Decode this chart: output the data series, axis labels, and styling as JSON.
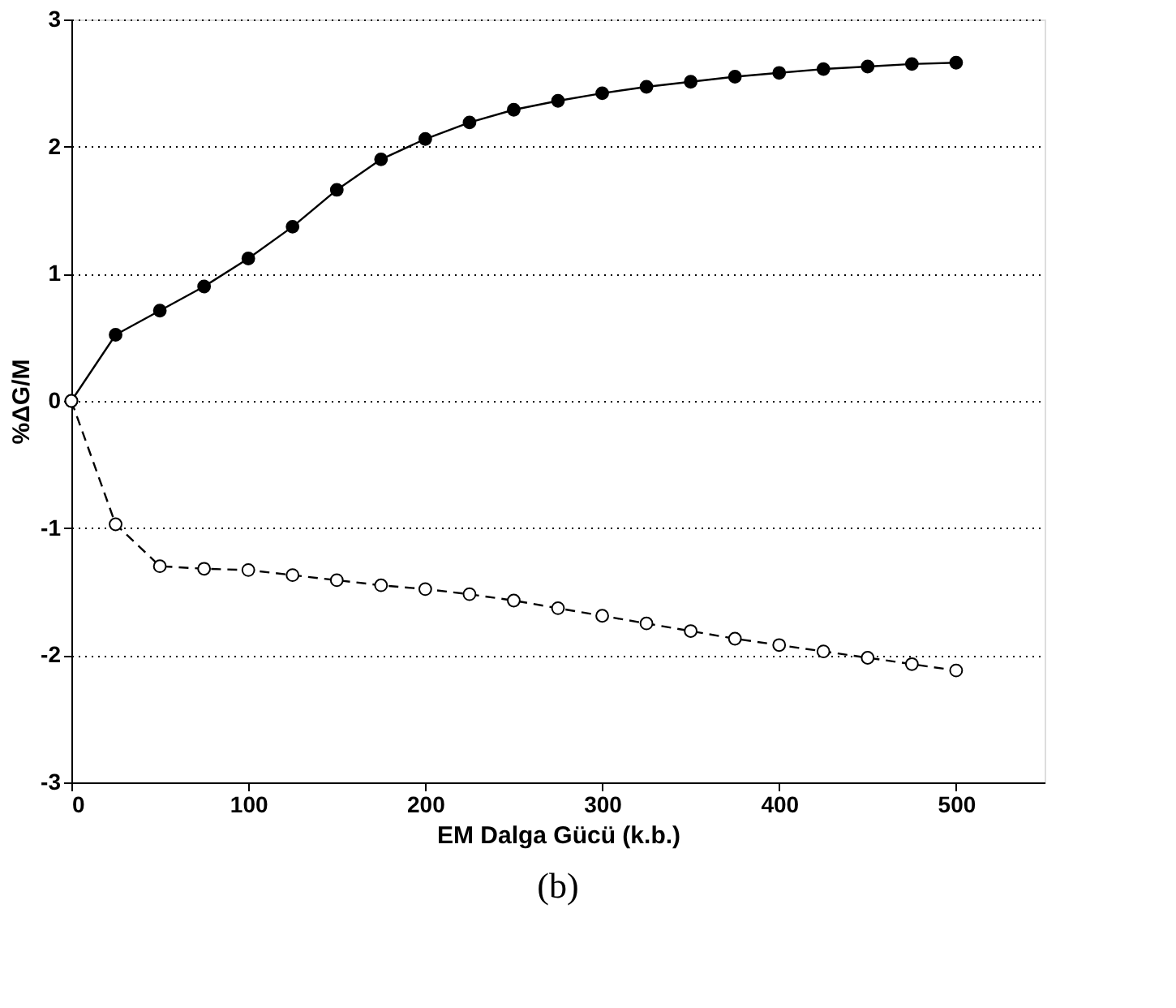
{
  "chart_data": {
    "type": "line",
    "xlabel": "EM Dalga Gücü (k.b.)",
    "ylabel": "%ΔG/M",
    "x": [
      0,
      25,
      50,
      75,
      100,
      125,
      150,
      175,
      200,
      225,
      250,
      275,
      300,
      325,
      350,
      375,
      400,
      425,
      450,
      475,
      500
    ],
    "series": [
      {
        "color": "#000000",
        "line_style": "solid",
        "values": [
          0,
          0.52,
          0.71,
          0.9,
          1.12,
          1.37,
          1.66,
          1.9,
          2.06,
          2.19,
          2.29,
          2.36,
          2.42,
          2.47,
          2.51,
          2.55,
          2.58,
          2.61,
          2.63,
          2.65,
          2.66
        ]
      },
      {
        "color": "#ffffff",
        "line_style": "dashed",
        "values": [
          0,
          -0.97,
          -1.3,
          -1.32,
          -1.33,
          -1.37,
          -1.41,
          -1.45,
          -1.48,
          -1.52,
          -1.57,
          -1.63,
          -1.69,
          -1.75,
          -1.81,
          -1.87,
          -1.92,
          -1.97,
          -2.02,
          -2.07,
          -2.12
        ]
      }
    ],
    "xlim": [
      0,
      550
    ],
    "xticks": [
      0,
      100,
      200,
      300,
      400,
      500
    ],
    "ylim": [
      -3,
      3
    ],
    "yticks": [
      -3,
      -2,
      -1,
      0,
      1,
      2,
      3
    ],
    "grid": "y",
    "marker": "circle",
    "annotations": [
      "(b)"
    ]
  }
}
